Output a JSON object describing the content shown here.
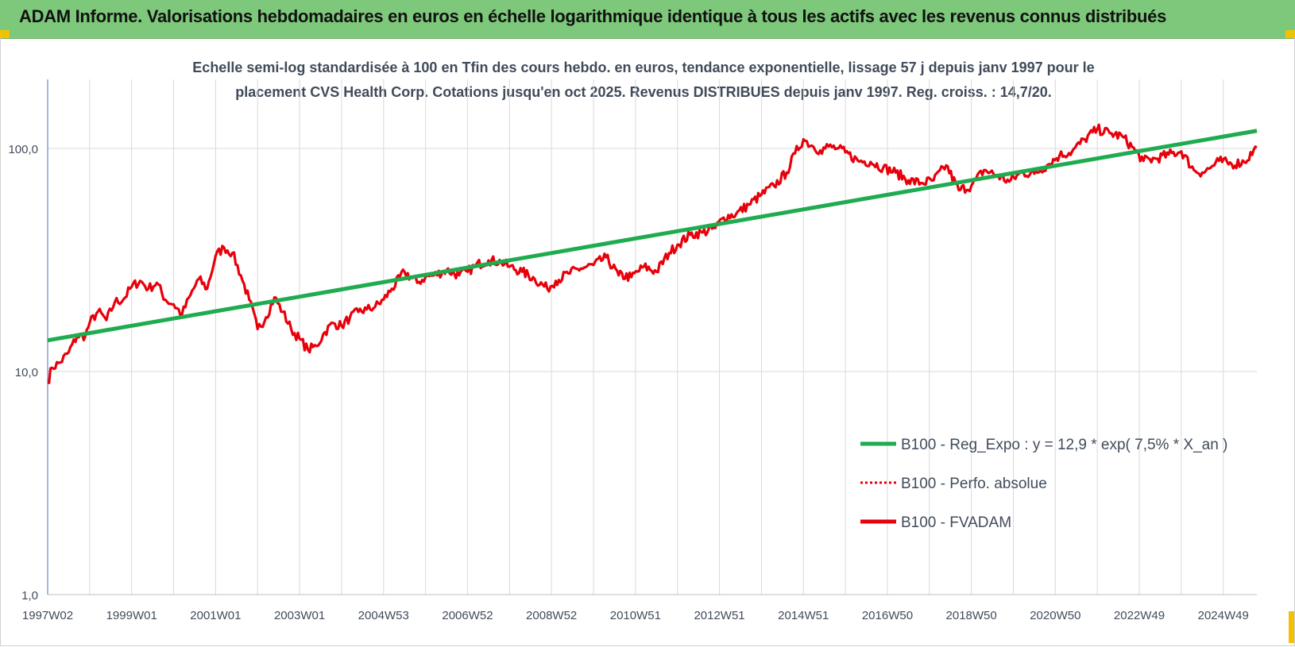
{
  "banner": {
    "title": "ADAM Informe. Valorisations hebdomadaires en euros en échelle logarithmique identique à tous les actifs avec les revenus connus distribués"
  },
  "colors": {
    "banner": "#7dc87a",
    "trend": "#1fab4f",
    "perf": "#e8000b",
    "fvadam": "#e8000b",
    "grid": "#d9d9d9",
    "text": "#404b5a"
  },
  "chart_data": {
    "type": "line",
    "title_line1": "Echelle semi-log standardisée à 100 en Tfin des cours hebdo. en euros, tendance exponentielle, lissage 57 j depuis janv 1997 pour le",
    "title_line2": "placement CVS Health Corp. Cotations jusqu'en oct 2025. Revenus DISTRIBUES depuis janv 1997. Reg. croiss. : 14,7/20.",
    "y_scale": "log",
    "ylim": [
      1,
      200
    ],
    "y_ticks": [
      {
        "value": 1,
        "label": "1,0"
      },
      {
        "value": 10,
        "label": "10,0"
      },
      {
        "value": 100,
        "label": "100,0"
      }
    ],
    "xlim": [
      1997.0,
      2025.8
    ],
    "x_ticks": [
      {
        "value": 1997.0,
        "label": "1997W02"
      },
      {
        "value": 1999.0,
        "label": "1999W01"
      },
      {
        "value": 2001.0,
        "label": "2001W01"
      },
      {
        "value": 2003.0,
        "label": "2003W01"
      },
      {
        "value": 2005.0,
        "label": "2004W53"
      },
      {
        "value": 2007.0,
        "label": "2006W52"
      },
      {
        "value": 2009.0,
        "label": "2008W52"
      },
      {
        "value": 2011.0,
        "label": "2010W51"
      },
      {
        "value": 2013.0,
        "label": "2012W51"
      },
      {
        "value": 2015.0,
        "label": "2014W51"
      },
      {
        "value": 2017.0,
        "label": "2016W50"
      },
      {
        "value": 2019.0,
        "label": "2018W50"
      },
      {
        "value": 2021.0,
        "label": "2020W50"
      },
      {
        "value": 2023.0,
        "label": "2022W49"
      },
      {
        "value": 2025.0,
        "label": "2024W49"
      }
    ],
    "grid": true,
    "legend_position": "lower-right",
    "series": [
      {
        "name": "B100 - Reg_Expo : y = 12,9 * exp( 7,5% *  X_an )",
        "style": "solid",
        "color": "#1fab4f",
        "x": [
          1997.0,
          2025.8
        ],
        "y": [
          13.8,
          120.0
        ]
      },
      {
        "name": "B100 - Perfo. absolue",
        "style": "dotted",
        "color": "#e8000b",
        "x": [],
        "y": []
      },
      {
        "name": "B100 - FVADAM",
        "style": "solid",
        "color": "#e8000b",
        "x": [
          1997.0,
          1997.1,
          1997.3,
          1997.5,
          1997.7,
          1997.9,
          1998.0,
          1998.2,
          1998.4,
          1998.6,
          1998.8,
          1999.0,
          1999.2,
          1999.4,
          1999.6,
          1999.8,
          2000.0,
          2000.2,
          2000.4,
          2000.6,
          2000.8,
          2001.0,
          2001.2,
          2001.4,
          2001.6,
          2001.8,
          2002.0,
          2002.2,
          2002.4,
          2002.6,
          2002.8,
          2003.0,
          2003.2,
          2003.4,
          2003.6,
          2003.8,
          2004.0,
          2004.2,
          2004.4,
          2004.6,
          2004.8,
          2005.0,
          2005.2,
          2005.5,
          2005.8,
          2006.0,
          2006.2,
          2006.5,
          2006.8,
          2007.0,
          2007.2,
          2007.5,
          2007.8,
          2008.0,
          2008.3,
          2008.6,
          2008.9,
          2009.1,
          2009.4,
          2009.7,
          2010.0,
          2010.3,
          2010.6,
          2010.9,
          2011.2,
          2011.5,
          2011.8,
          2012.0,
          2012.3,
          2012.6,
          2012.9,
          2013.1,
          2013.4,
          2013.7,
          2014.0,
          2014.3,
          2014.6,
          2014.8,
          2015.0,
          2015.2,
          2015.4,
          2015.6,
          2015.8,
          2016.0,
          2016.3,
          2016.6,
          2016.9,
          2017.2,
          2017.5,
          2017.8,
          2018.1,
          2018.4,
          2018.7,
          2019.0,
          2019.3,
          2019.6,
          2019.9,
          2020.2,
          2020.5,
          2020.8,
          2021.1,
          2021.4,
          2021.7,
          2022.0,
          2022.3,
          2022.6,
          2022.9,
          2023.1,
          2023.4,
          2023.7,
          2024.0,
          2024.3,
          2024.5,
          2024.7,
          2024.9,
          2025.2,
          2025.5,
          2025.8
        ],
        "y": [
          8.9,
          10.4,
          11.0,
          12.2,
          14.4,
          14.5,
          16.5,
          18.6,
          17.0,
          20.5,
          21.0,
          24.0,
          25.5,
          23.5,
          25.0,
          21.0,
          20.0,
          18.0,
          22.0,
          26.0,
          23.5,
          33.0,
          36.0,
          34.0,
          27.0,
          21.0,
          15.5,
          17.5,
          21.5,
          18.5,
          15.5,
          14.0,
          12.5,
          13.0,
          15.0,
          16.5,
          16.0,
          17.5,
          18.5,
          19.0,
          19.5,
          21.0,
          23.5,
          28.0,
          25.0,
          26.5,
          27.0,
          28.5,
          27.0,
          28.0,
          30.0,
          31.5,
          31.0,
          29.5,
          28.0,
          26.0,
          23.5,
          25.5,
          27.5,
          29.0,
          30.0,
          32.5,
          27.0,
          26.5,
          29.5,
          28.0,
          34.0,
          37.0,
          41.0,
          42.0,
          44.0,
          49.0,
          51.0,
          56.0,
          62.0,
          68.0,
          78.0,
          95.0,
          110.0,
          103.0,
          98.0,
          102.0,
          100.0,
          96.0,
          88.0,
          87.0,
          82.0,
          78.0,
          72.0,
          70.0,
          72.0,
          84.0,
          65.0,
          68.0,
          80.0,
          76.0,
          71.0,
          78.0,
          77.0,
          84.0,
          93.0,
          97.0,
          110.0,
          122.0,
          117.0,
          113.0,
          98.0,
          88.0,
          90.0,
          94.0,
          97.0,
          80.0,
          78.0,
          82.0,
          88.0,
          85.0,
          87.0,
          101.0
        ]
      }
    ]
  }
}
